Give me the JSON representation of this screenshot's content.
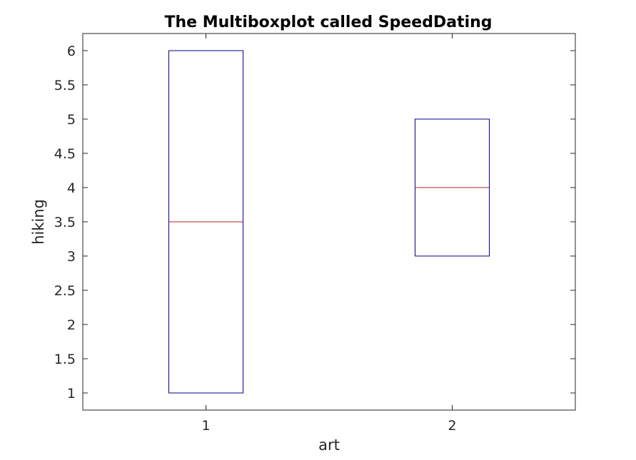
{
  "chart_data": {
    "type": "boxplot",
    "title": "The Multiboxplot called SpeedDating",
    "xlabel": "art",
    "ylabel": "hiking",
    "categories": [
      "1",
      "2"
    ],
    "ylim": [
      0.75,
      6.25
    ],
    "y_ticks": [
      1,
      1.5,
      2,
      2.5,
      3,
      3.5,
      4,
      4.5,
      5,
      5.5,
      6
    ],
    "y_tick_labels": [
      "1",
      "1.5",
      "2",
      "2.5",
      "3",
      "3.5",
      "4",
      "4.5",
      "5",
      "5.5",
      "6"
    ],
    "boxes": [
      {
        "category": "1",
        "q1": 1,
        "median": 3.5,
        "q3": 6
      },
      {
        "category": "2",
        "q1": 3,
        "median": 4,
        "q3": 5
      }
    ],
    "box_color": "#00008b",
    "median_color": "#b22222",
    "axis_color": "#262626",
    "grid": false
  }
}
